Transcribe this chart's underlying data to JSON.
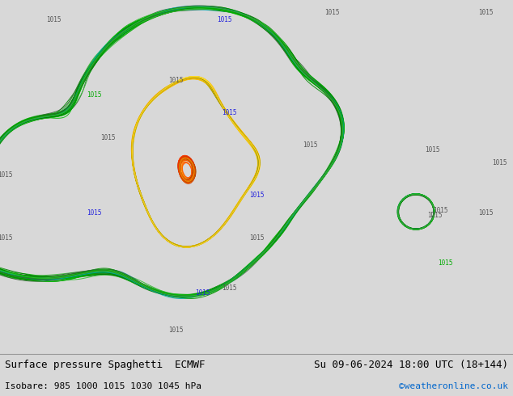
{
  "title_left": "Surface pressure Spaghetti  ECMWF",
  "title_right": "Su 09-06-2024 18:00 UTC (18+144)",
  "subtitle_left": "Isobare: 985 1000 1015 1030 1045 hPa",
  "subtitle_right": "©weatheronline.co.uk",
  "subtitle_right_color": "#0066cc",
  "bg_color": "#d8d8d8",
  "land_color": "#aaffaa",
  "sea_color": "#d8d8d8",
  "isobar_levels": [
    985,
    1000,
    1015,
    1030,
    1045
  ],
  "contour_colors": {
    "985": "#ff6600",
    "1000": "#ffcc00",
    "1015": "#00aa00",
    "1030": "#2222dd",
    "1045": "#cc00cc"
  },
  "text_color": "#000000",
  "font_size_title": 9,
  "font_size_subtitle": 8,
  "lon_min": 13.0,
  "lon_max": 32.0,
  "lat_min": 33.0,
  "lat_max": 47.0,
  "fig_width": 6.34,
  "fig_height": 4.9,
  "dpi": 100,
  "n_members": 51,
  "noise_scale": 3.0,
  "noise_smooth": 6.0
}
